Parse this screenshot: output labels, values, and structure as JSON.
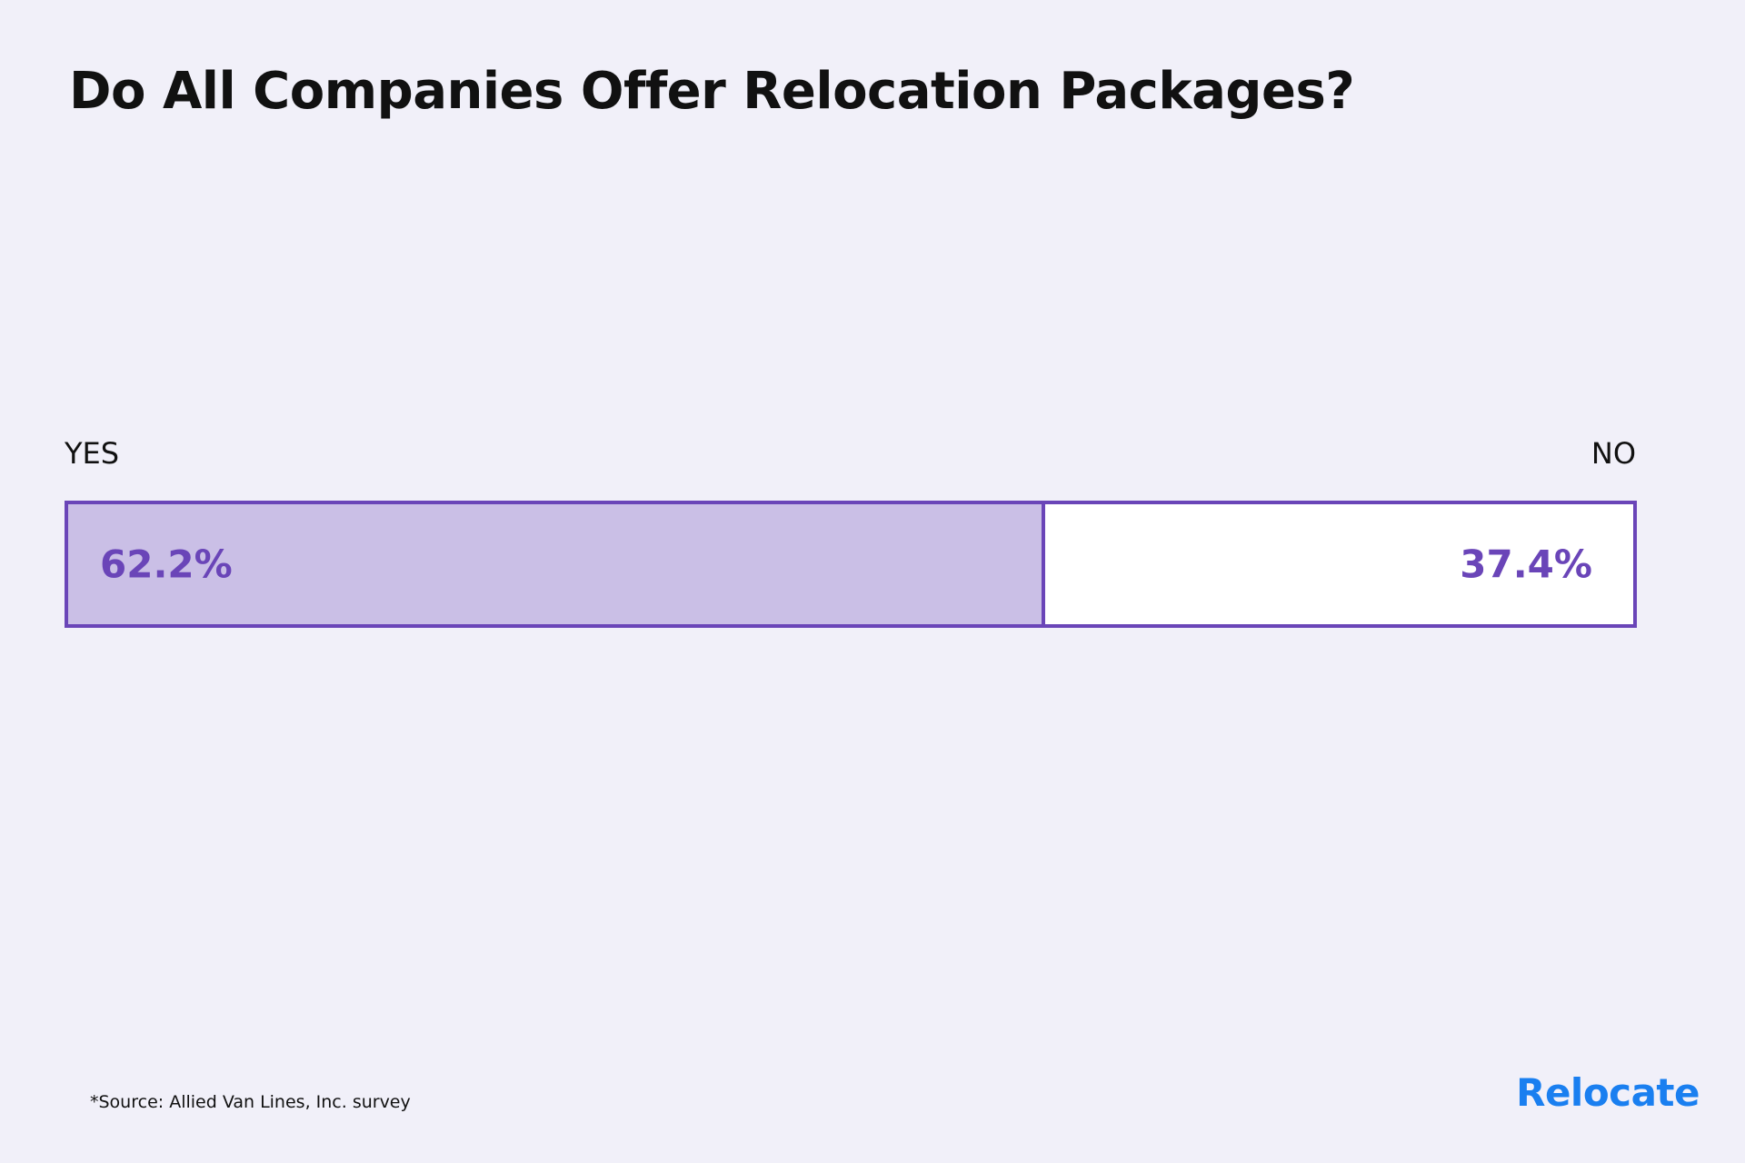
{
  "chart_data": {
    "type": "bar",
    "orientation": "horizontal-stacked",
    "title": "Do All Companies Offer Relocation Packages?",
    "categories": [
      "YES",
      "NO"
    ],
    "values": [
      62.2,
      37.4
    ],
    "value_labels": [
      "62.2%",
      "37.4%"
    ],
    "unit": "%",
    "legend": "none",
    "grid": false
  },
  "footer": {
    "source": "*Source: Allied Van Lines, Inc. survey",
    "brand": "Relocate"
  },
  "colors": {
    "background": "#f1f0f9",
    "accent": "#6a45b8",
    "yes_fill": "#cabfe6",
    "no_fill": "#ffffff",
    "brand": "#1a7ff0"
  }
}
